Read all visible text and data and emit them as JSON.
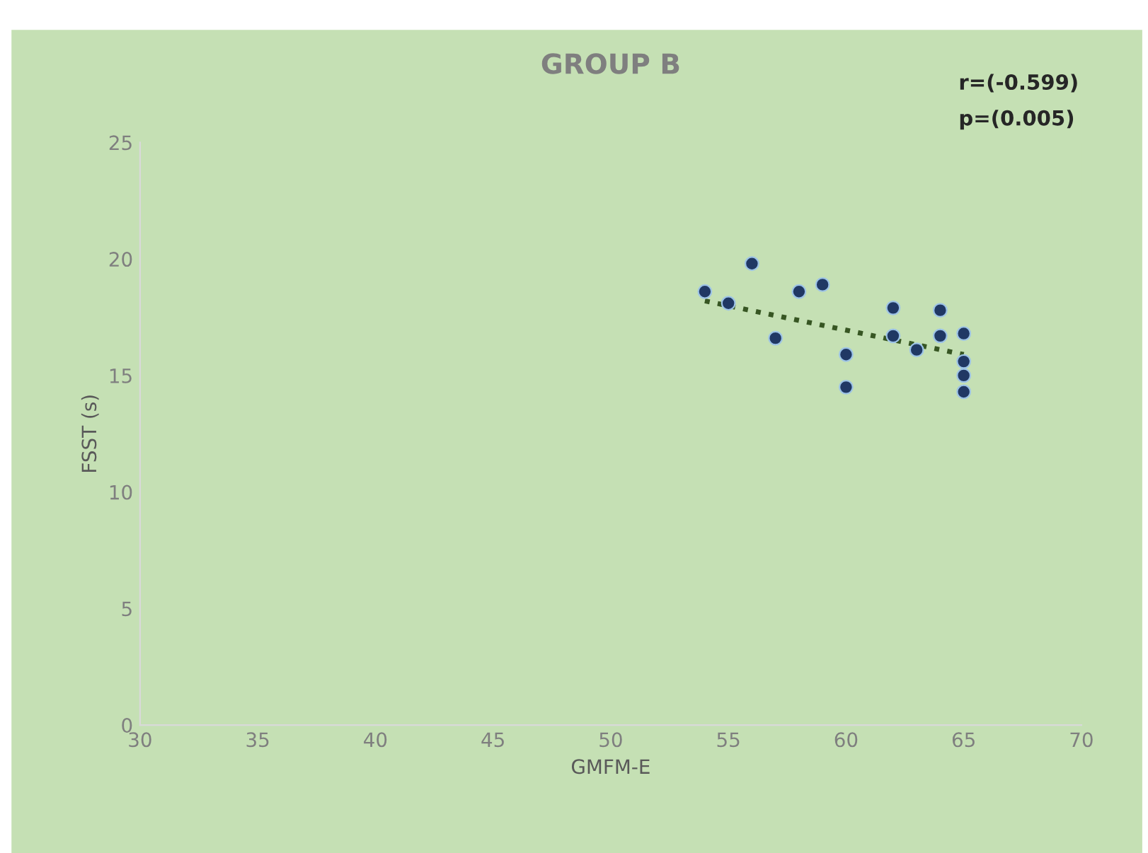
{
  "chart_data": {
    "type": "scatter",
    "title": "GROUP B",
    "xlabel": "GMFM-E",
    "ylabel": "FSST (s)",
    "annotations": [
      "r=(-0.599)",
      "p=(0.005)"
    ],
    "series": [
      {
        "color": "#203864",
        "marker": "circle",
        "x": [
          54,
          55,
          56,
          57,
          58,
          59,
          60,
          60,
          62,
          62,
          63,
          64,
          64,
          65,
          65,
          65,
          65
        ],
        "values": [
          18.6,
          18.1,
          19.8,
          16.6,
          18.6,
          18.9,
          15.9,
          14.5,
          17.9,
          16.7,
          16.1,
          17.8,
          16.7,
          16.8,
          15.6,
          15.0,
          14.3
        ]
      },
      {
        "type": "line",
        "color": "#375623",
        "line_style": "dotted",
        "x": [
          54,
          65
        ],
        "values": [
          18.2,
          15.9
        ]
      }
    ],
    "xlim": [
      30,
      70
    ],
    "xticks": [
      30,
      35,
      40,
      45,
      50,
      55,
      60,
      65,
      70
    ],
    "ylim": [
      0,
      25
    ],
    "yticks": [
      0,
      5,
      10,
      15,
      20,
      25
    ],
    "grid": false,
    "legend": false
  }
}
